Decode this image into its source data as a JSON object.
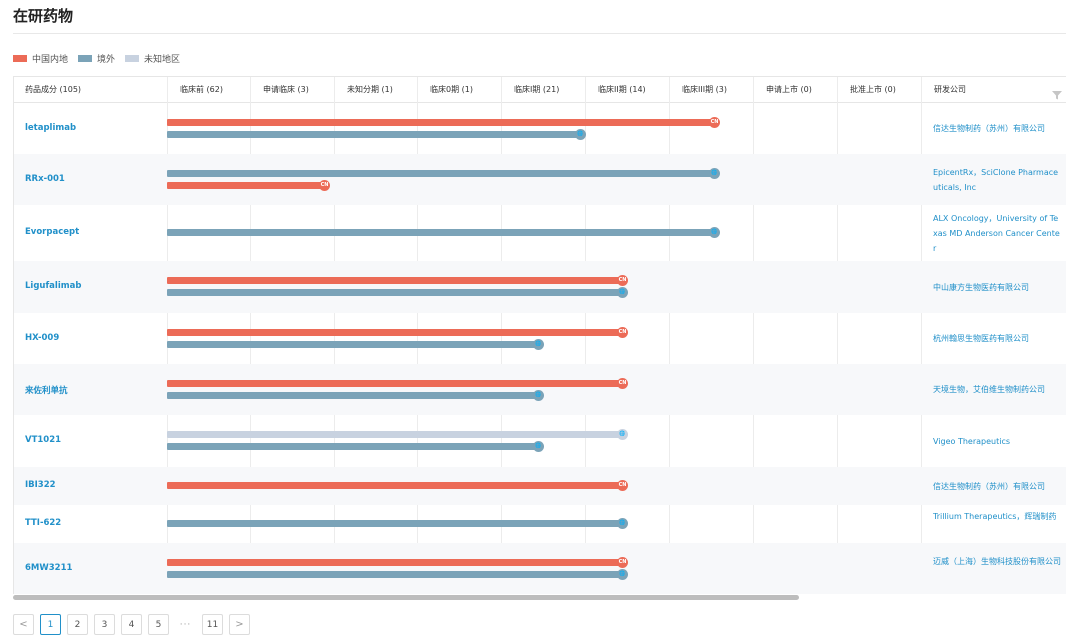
{
  "title": "在研药物",
  "legend": [
    {
      "label": "中国内地",
      "color": "#ec6b57"
    },
    {
      "label": "境外",
      "color": "#7ba3b8"
    },
    {
      "label": "未知地区",
      "color": "#c8d2e0"
    }
  ],
  "columns": [
    "药品成分 (105)",
    "临床前 (62)",
    "申请临床 (3)",
    "未知分期 (1)",
    "临床0期 (1)",
    "临床I期 (21)",
    "临床II期 (14)",
    "临床III期 (3)",
    "申请上市 (0)",
    "批准上市 (0)",
    "研发公司"
  ],
  "badges": {
    "cn": "CN",
    "ov": "🌐",
    "un": "🌐"
  },
  "rows": [
    {
      "drug": "letaplimab",
      "company": "信达生物制药（苏州）有限公司",
      "bars": [
        {
          "region": "cn",
          "phase": 6.6
        },
        {
          "region": "ov",
          "phase": 5.0
        }
      ]
    },
    {
      "drug": "RRx-001",
      "company": "EpicentRx，SciClone Pharmaceuticals, Inc",
      "bars": [
        {
          "region": "ov",
          "phase": 6.6
        },
        {
          "region": "cn",
          "phase": 1.95
        }
      ]
    },
    {
      "drug": "Evorpacept",
      "company": "ALX Oncology，University of Texas MD Anderson Cancer Center",
      "bars": [
        {
          "region": "ov",
          "phase": 6.6
        }
      ]
    },
    {
      "drug": "Ligufalimab",
      "company": "中山康方生物医药有限公司",
      "bars": [
        {
          "region": "cn",
          "phase": 5.5
        },
        {
          "region": "ov",
          "phase": 5.5
        }
      ]
    },
    {
      "drug": "HX-009",
      "company": "杭州翰思生物医药有限公司",
      "bars": [
        {
          "region": "cn",
          "phase": 5.5
        },
        {
          "region": "ov",
          "phase": 4.5
        }
      ]
    },
    {
      "drug": "来佐利单抗",
      "company": "天境生物，艾伯维生物制药公司",
      "bars": [
        {
          "region": "cn",
          "phase": 5.5
        },
        {
          "region": "ov",
          "phase": 4.5
        }
      ]
    },
    {
      "drug": "VT1021",
      "company": "Vigeo Therapeutics",
      "bars": [
        {
          "region": "un",
          "phase": 5.5
        },
        {
          "region": "ov",
          "phase": 4.5
        }
      ]
    },
    {
      "drug": "IBI322",
      "company": "信达生物制药（苏州）有限公司",
      "bars": [
        {
          "region": "cn",
          "phase": 5.5
        }
      ]
    },
    {
      "drug": "TTI-622",
      "company": "Trillium Therapeutics，辉瑞制药",
      "bars": [
        {
          "region": "ov",
          "phase": 5.5
        }
      ]
    },
    {
      "drug": "6MW3211",
      "company": "迈威（上海）生物科技股份有限公司",
      "bars": [
        {
          "region": "cn",
          "phase": 5.5
        },
        {
          "region": "ov",
          "phase": 5.5
        }
      ]
    }
  ],
  "pagination": {
    "prev": "<",
    "pages": [
      "1",
      "2",
      "3",
      "4",
      "5"
    ],
    "ellipsis": "···",
    "last": "11",
    "next": ">",
    "current": "1"
  }
}
